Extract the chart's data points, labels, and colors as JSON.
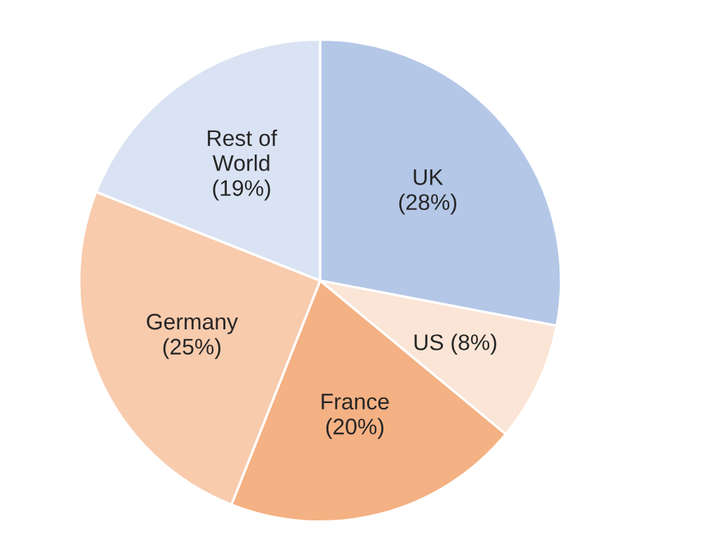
{
  "chart_data": {
    "type": "pie",
    "categories": [
      "UK",
      "US",
      "France",
      "Germany",
      "Rest of\nWorld"
    ],
    "values": [
      28,
      8,
      20,
      25,
      19
    ],
    "value_labels": [
      "(28%)",
      "(8%)",
      "(20%)",
      "(25%)",
      "(19%)"
    ],
    "colors": [
      "#b4c7e7",
      "#fbe5d6",
      "#f4b183",
      "#f8cbad",
      "#dae3f3"
    ]
  }
}
